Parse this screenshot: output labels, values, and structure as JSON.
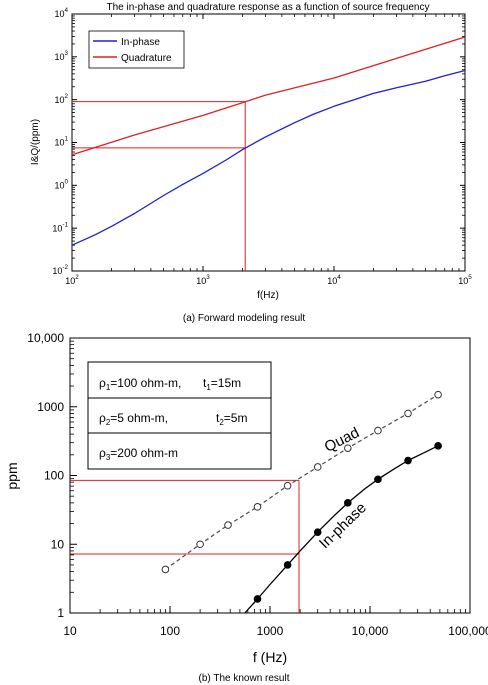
{
  "chart_data": [
    {
      "type": "line",
      "title": "The in-phase and quadrature response as a function of source frequency",
      "xlabel": "f(Hz)",
      "ylabel": "I&Q/(ppm)",
      "xscale": "log",
      "yscale": "log",
      "xlim": [
        100,
        100000
      ],
      "ylim": [
        0.01,
        10000
      ],
      "xticks": [
        {
          "v": 100,
          "b": "10",
          "e": "2"
        },
        {
          "v": 1000,
          "b": "10",
          "e": "3"
        },
        {
          "v": 10000,
          "b": "10",
          "e": "4"
        },
        {
          "v": 100000,
          "b": "10",
          "e": "5"
        }
      ],
      "yticks": [
        {
          "v": 0.01,
          "b": "10",
          "e": "-2"
        },
        {
          "v": 0.1,
          "b": "10",
          "e": "-1"
        },
        {
          "v": 1,
          "b": "10",
          "e": "0"
        },
        {
          "v": 10,
          "b": "10",
          "e": "1"
        },
        {
          "v": 100,
          "b": "10",
          "e": "2"
        },
        {
          "v": 1000,
          "b": "10",
          "e": "3"
        },
        {
          "v": 10000,
          "b": "10",
          "e": "4"
        }
      ],
      "legend_position": "top-left",
      "grid": false,
      "series": [
        {
          "name": "In-phase",
          "color": "#1f1fd6",
          "x": [
            100,
            150,
            200,
            300,
            500,
            700,
            1000,
            1500,
            2000,
            3000,
            5000,
            7000,
            10000,
            15000,
            20000,
            30000,
            50000,
            70000,
            100000
          ],
          "y": [
            0.04,
            0.07,
            0.11,
            0.22,
            0.58,
            1.05,
            1.9,
            3.9,
            6.8,
            13.5,
            29,
            46,
            70,
            105,
            140,
            190,
            270,
            360,
            480
          ]
        },
        {
          "name": "Quadrature",
          "color": "#e02020",
          "x": [
            100,
            300,
            1000,
            2000,
            3000,
            10000,
            30000,
            100000
          ],
          "y": [
            5.2,
            15,
            43,
            85,
            128,
            320,
            920,
            2900
          ]
        }
      ],
      "reference_lines": [
        {
          "kind": "vertical",
          "x": 2100,
          "from_y": 0.01,
          "to_y": 90,
          "color": "#e02020"
        },
        {
          "kind": "horizontal",
          "y": 90,
          "from_x": 100,
          "to_x": 2100,
          "color": "#e02020"
        },
        {
          "kind": "horizontal",
          "y": 7.5,
          "from_x": 100,
          "to_x": 2100,
          "color": "#e02020"
        }
      ],
      "caption": "(a) Forward modeling result"
    },
    {
      "type": "line",
      "xlabel": "f (Hz)",
      "ylabel": "ppm",
      "xscale": "log",
      "yscale": "log",
      "xlim": [
        10,
        100000
      ],
      "ylim": [
        1,
        10000
      ],
      "xticks": [
        {
          "v": 10,
          "label": "10"
        },
        {
          "v": 100,
          "label": "100"
        },
        {
          "v": 1000,
          "label": "1000"
        },
        {
          "v": 10000,
          "label": "10,000"
        },
        {
          "v": 100000,
          "label": "100,000"
        }
      ],
      "yticks": [
        {
          "v": 1,
          "label": "1"
        },
        {
          "v": 10,
          "label": "10"
        },
        {
          "v": 100,
          "label": "100"
        },
        {
          "v": 1000,
          "label": "1000"
        },
        {
          "v": 10000,
          "label": "10,000"
        }
      ],
      "grid": false,
      "model_table": [
        {
          "rho_sub": "1",
          "rho_val": "=100 ohm-m,",
          "t_sub": "1",
          "t_val": "=15m"
        },
        {
          "rho_sub": "2",
          "rho_val": "=5 ohm-m,",
          "t_sub": "2",
          "t_val": "=5m"
        },
        {
          "rho_sub": "3",
          "rho_val": "=200 ohm-m",
          "t_sub": "",
          "t_val": ""
        }
      ],
      "series": [
        {
          "name": "Quad",
          "style": "dashed",
          "marker": "open-circle",
          "color": "#555555",
          "x": [
            90,
            200,
            380,
            750,
            1500,
            3000,
            6000,
            12000,
            24000,
            48000
          ],
          "y": [
            4.3,
            10,
            19,
            35,
            71,
            133,
            250,
            450,
            800,
            1500
          ]
        },
        {
          "name": "In-phase",
          "style": "solid",
          "marker": "filled-circle",
          "color": "#000000",
          "x": [
            750,
            1500,
            3000,
            6000,
            12000,
            24000,
            48000
          ],
          "y": [
            1.6,
            5,
            15,
            40,
            88,
            165,
            270
          ]
        },
        {
          "name": "In-phase-curve",
          "style": "solid",
          "marker": "none",
          "color": "#000000",
          "x": [
            560,
            750,
            1000,
            1500,
            2000,
            3000,
            4500,
            6000,
            9000,
            12000,
            18000,
            24000,
            35000,
            48000
          ],
          "y": [
            1,
            1.6,
            2.6,
            5,
            8,
            15,
            27,
            40,
            65,
            88,
            128,
            165,
            215,
            270
          ]
        }
      ],
      "reference_lines": [
        {
          "kind": "vertical",
          "x": 1950,
          "from_y": 1,
          "to_y": 85,
          "color": "#e02020"
        },
        {
          "kind": "horizontal",
          "y": 85,
          "from_x": 10,
          "to_x": 1950,
          "color": "#e02020"
        },
        {
          "kind": "horizontal",
          "y": 7.2,
          "from_x": 10,
          "to_x": 1950,
          "color": "#e02020"
        }
      ],
      "caption": "(b) The known result"
    }
  ]
}
